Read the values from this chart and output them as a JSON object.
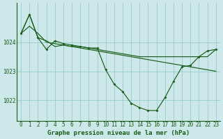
{
  "title": "Graphe pression niveau de la mer (hPa)",
  "bg_color": "#cce8e8",
  "grid_color": "#99cccc",
  "line_color": "#1a5c1a",
  "hours": [
    0,
    1,
    2,
    3,
    4,
    5,
    6,
    7,
    8,
    9,
    10,
    11,
    12,
    13,
    14,
    15,
    16,
    17,
    18,
    19,
    20,
    21,
    22,
    23
  ],
  "series_straight": [
    1024.3,
    1024.55,
    1024.3,
    1024.0,
    1023.95,
    1023.9,
    1023.85,
    1023.8,
    1023.75,
    1023.7,
    1023.65,
    1023.6,
    1023.55,
    1023.5,
    1023.45,
    1023.4,
    1023.35,
    1023.3,
    1023.25,
    1023.2,
    1023.15,
    1023.1,
    1023.05,
    1023.0
  ],
  "series_main": [
    1024.3,
    1024.95,
    1024.15,
    1023.75,
    1024.05,
    1023.95,
    1023.9,
    1023.85,
    1023.8,
    1023.8,
    1023.05,
    1022.55,
    1022.3,
    1021.9,
    1021.75,
    1021.65,
    1021.65,
    1022.1,
    1022.65,
    1023.15,
    1023.2,
    1023.5,
    1023.7,
    1023.75
  ],
  "series_upper": [
    1024.3,
    1024.95,
    1024.15,
    1024.05,
    1023.85,
    1023.9,
    1023.85,
    1023.85,
    1023.8,
    1023.75,
    1023.7,
    1023.65,
    1023.6,
    1023.55,
    1023.5,
    1023.5,
    1023.5,
    1023.5,
    1023.5,
    1023.5,
    1023.5,
    1023.5,
    1023.5,
    1023.75
  ],
  "ylim_min": 1021.3,
  "ylim_max": 1025.35,
  "yticks": [
    1022,
    1023,
    1024
  ],
  "title_fontsize": 6.5,
  "tick_fontsize": 5.5
}
